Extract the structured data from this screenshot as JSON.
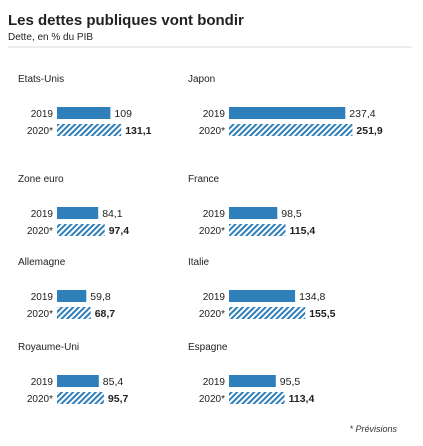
{
  "header": {
    "title": "Les dettes publiques vont bondir",
    "subtitle": "Dette, en % du PIB"
  },
  "footnote": "* Prévisions",
  "colors": {
    "bar_2019": "#2f7fba",
    "bar_2020_stripe": "#2f7fba",
    "bar_2020_bg": "#ffffff",
    "text": "#222222"
  },
  "chart_data": {
    "type": "bar",
    "orientation": "horizontal",
    "title": "Les dettes publiques vont bondir",
    "subtitle": "Dette, en % du PIB",
    "series": [
      {
        "name": "2019"
      },
      {
        "name": "2020*"
      }
    ],
    "panels": [
      {
        "country": "Etats-Unis",
        "values": [
          {
            "year": "2019",
            "value": 109,
            "label": "109",
            "bold": false
          },
          {
            "year": "2020*",
            "value": 131.1,
            "label": "131,1",
            "bold": true
          }
        ]
      },
      {
        "country": "Japon",
        "values": [
          {
            "year": "2019",
            "value": 237.4,
            "label": "237,4",
            "bold": false
          },
          {
            "year": "2020*",
            "value": 251.9,
            "label": "251,9",
            "bold": true
          }
        ]
      },
      {
        "country": "Zone euro",
        "values": [
          {
            "year": "2019",
            "value": 84.1,
            "label": "84,1",
            "bold": false
          },
          {
            "year": "2020*",
            "value": 97.4,
            "label": "97,4",
            "bold": true
          }
        ]
      },
      {
        "country": "France",
        "values": [
          {
            "year": "2019",
            "value": 98.5,
            "label": "98,5",
            "bold": false
          },
          {
            "year": "2020*",
            "value": 115.4,
            "label": "115,4",
            "bold": true
          }
        ]
      },
      {
        "country": "Allemagne",
        "values": [
          {
            "year": "2019",
            "value": 59.8,
            "label": "59,8",
            "bold": false
          },
          {
            "year": "2020*",
            "value": 68.7,
            "label": "68,7",
            "bold": true
          }
        ]
      },
      {
        "country": "Italie",
        "values": [
          {
            "year": "2019",
            "value": 134.8,
            "label": "134,8",
            "bold": false
          },
          {
            "year": "2020*",
            "value": 155.5,
            "label": "155,5",
            "bold": true
          }
        ]
      },
      {
        "country": "Royaume-Uni",
        "values": [
          {
            "year": "2019",
            "value": 85.4,
            "label": "85,4",
            "bold": false
          },
          {
            "year": "2020*",
            "value": 95.7,
            "label": "95,7",
            "bold": true
          }
        ]
      },
      {
        "country": "Espagne",
        "values": [
          {
            "year": "2019",
            "value": 95.5,
            "label": "95,5",
            "bold": false
          },
          {
            "year": "2020*",
            "value": 113.4,
            "label": "113,4",
            "bold": true
          }
        ]
      }
    ]
  }
}
